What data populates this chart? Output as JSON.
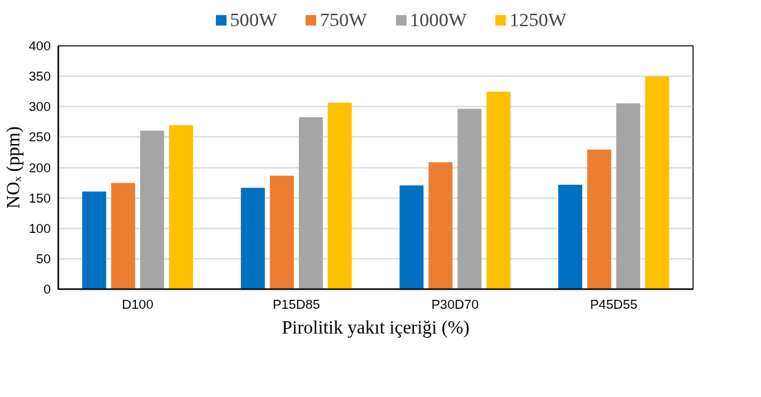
{
  "chart_data": {
    "type": "bar",
    "xlabel": "Pirolitik yakıt içeriği (%)",
    "ylabel": "NOₓ (ppm)",
    "categories": [
      "D100",
      "P15D85",
      "P30D70",
      "P45D55"
    ],
    "series": [
      {
        "name": "500W",
        "color": "#0070c0",
        "values": [
          160,
          166,
          170,
          171
        ]
      },
      {
        "name": "750W",
        "color": "#ed7d31",
        "values": [
          174,
          186,
          208,
          229
        ]
      },
      {
        "name": "1000W",
        "color": "#a5a5a5",
        "values": [
          260,
          282,
          296,
          305
        ]
      },
      {
        "name": "1250W",
        "color": "#ffc000",
        "values": [
          269,
          306,
          324,
          349
        ]
      }
    ],
    "ylim": [
      0,
      400
    ],
    "yticks": [
      0,
      50,
      100,
      150,
      200,
      250,
      300,
      350,
      400
    ],
    "grid": "y",
    "legend": "top"
  }
}
